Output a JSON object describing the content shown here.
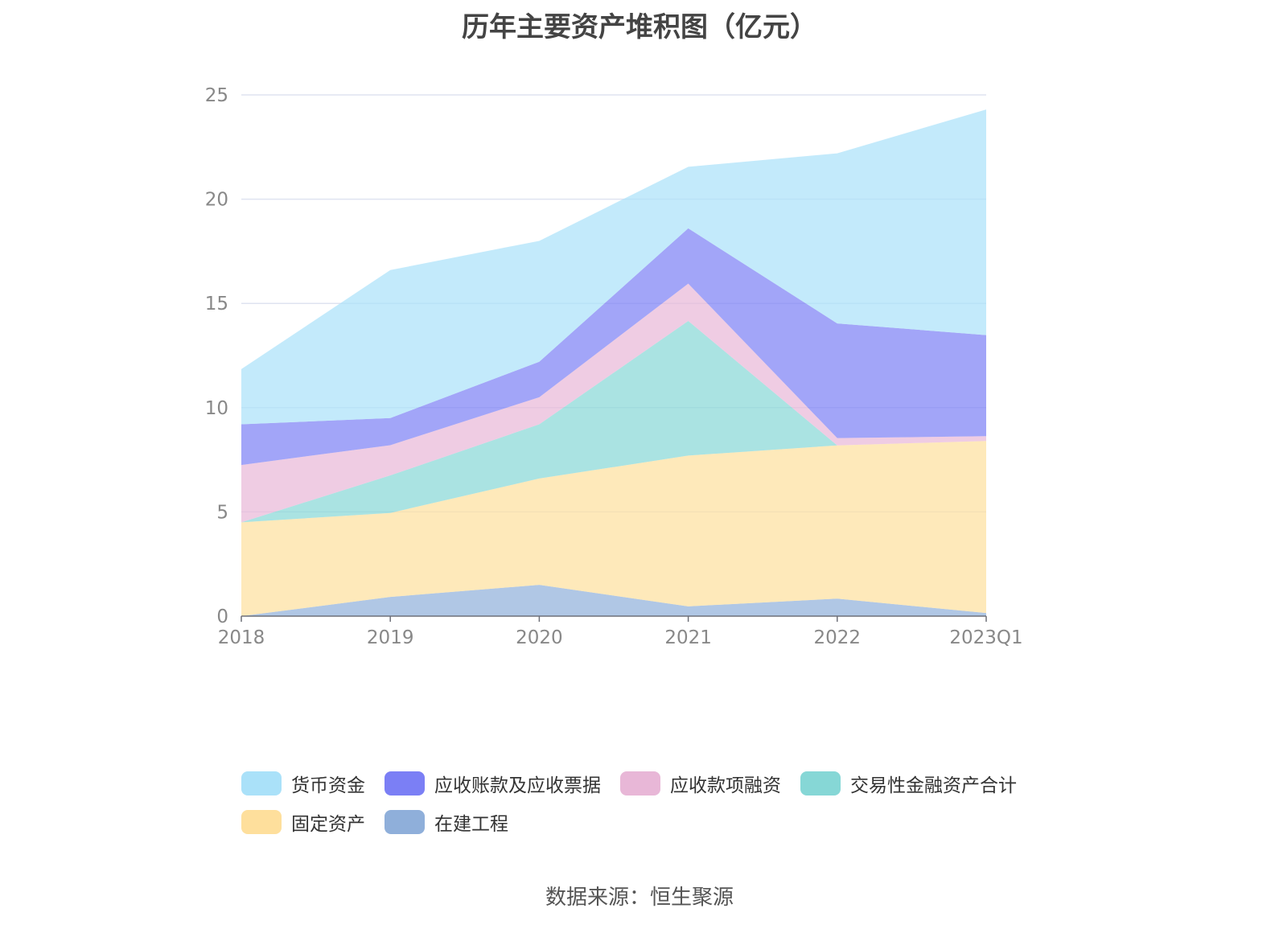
{
  "title": "历年主要资产堆积图（亿元）",
  "source": "数据来源：恒生聚源",
  "chart_data": {
    "type": "area",
    "stacked": true,
    "categories": [
      "2018",
      "2019",
      "2020",
      "2021",
      "2022",
      "2023Q1"
    ],
    "ylim": [
      0,
      25
    ],
    "yticks": [
      0,
      5,
      10,
      15,
      20,
      25
    ],
    "grid": true,
    "legend_position": "bottom",
    "series": [
      {
        "name": "在建工程",
        "color": "#8fafda",
        "values": [
          0.0,
          0.92,
          1.5,
          0.47,
          0.84,
          0.15
        ]
      },
      {
        "name": "固定资产",
        "color": "#fedf9c",
        "values": [
          4.5,
          4.03,
          5.1,
          7.23,
          7.35,
          8.25
        ]
      },
      {
        "name": "交易性金融资产合计",
        "color": "#86d7d6",
        "values": [
          0.0,
          1.8,
          2.6,
          6.46,
          0.0,
          0.0
        ]
      },
      {
        "name": "应收款项融资",
        "color": "#e8b7d7",
        "values": [
          2.75,
          1.45,
          1.3,
          1.79,
          0.35,
          0.23
        ]
      },
      {
        "name": "应收账款及应收票据",
        "color": "#7b7ff5",
        "values": [
          1.95,
          1.3,
          1.7,
          2.65,
          5.5,
          4.85
        ]
      },
      {
        "name": "货币资金",
        "color": "#aae1f9",
        "values": [
          2.65,
          7.1,
          5.8,
          2.95,
          8.16,
          10.82
        ]
      }
    ]
  },
  "legend": {
    "row1": [
      {
        "label": "货币资金",
        "color": "#aae1f9"
      },
      {
        "label": "应收账款及应收票据",
        "color": "#7b7ff5"
      },
      {
        "label": "应收款项融资",
        "color": "#e8b7d7"
      },
      {
        "label": "交易性金融资产合计",
        "color": "#86d7d6"
      }
    ],
    "row2": [
      {
        "label": "固定资产",
        "color": "#fedf9c"
      },
      {
        "label": "在建工程",
        "color": "#8fafda"
      }
    ]
  }
}
